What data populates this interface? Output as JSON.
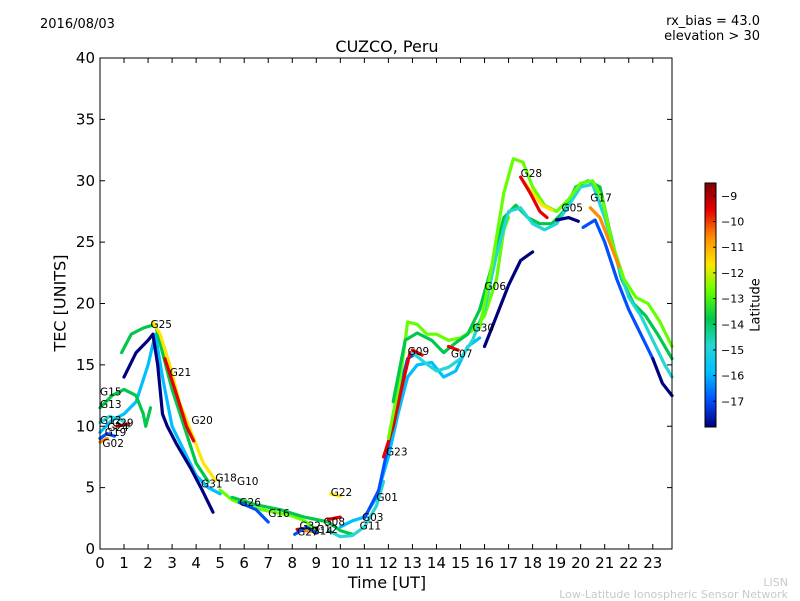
{
  "header": {
    "date": "2016/08/03",
    "rx_bias": "rx_bias = 43.0",
    "elevation": "elevation > 30"
  },
  "footer": {
    "brand_short": "LISN",
    "brand_long": "Low-Latitude Ionospheric Sensor Network"
  },
  "chart_data": {
    "type": "line",
    "title": "CUZCO, Peru",
    "xlabel": "Time [UT]",
    "ylabel": "TEC [UNITS]",
    "xlim": [
      0,
      23.8
    ],
    "ylim": [
      0,
      40
    ],
    "xticks": [
      0,
      1,
      2,
      3,
      4,
      5,
      6,
      7,
      8,
      9,
      10,
      11,
      12,
      13,
      14,
      15,
      16,
      17,
      18,
      19,
      20,
      21,
      22,
      23
    ],
    "yticks": [
      0,
      5,
      10,
      15,
      20,
      25,
      30,
      35,
      40
    ],
    "grid": false,
    "colorbar": {
      "label": "Latitude",
      "range": [
        -18,
        -8.5
      ],
      "ticks": [
        -9,
        -10,
        -11,
        -12,
        -13,
        -14,
        -15,
        -16,
        -17
      ],
      "colors": [
        "#00007f",
        "#0050ff",
        "#00bfff",
        "#24d7d4",
        "#00c84a",
        "#64ff00",
        "#ffe600",
        "#ff8c00",
        "#e60000",
        "#7f0000"
      ]
    },
    "satellite_labels": [
      {
        "name": "G25",
        "x": 2.1,
        "y": 18.0
      },
      {
        "name": "G21",
        "x": 2.9,
        "y": 14.1
      },
      {
        "name": "G20",
        "x": 3.8,
        "y": 10.2
      },
      {
        "name": "G15",
        "x": 0.0,
        "y": 12.5
      },
      {
        "name": "G13",
        "x": 0.0,
        "y": 11.5
      },
      {
        "name": "G12",
        "x": 0.0,
        "y": 10.2
      },
      {
        "name": "G29",
        "x": 0.5,
        "y": 10.0
      },
      {
        "name": "G24",
        "x": 0.3,
        "y": 9.6
      },
      {
        "name": "G19",
        "x": 0.2,
        "y": 9.2
      },
      {
        "name": "G02",
        "x": 0.1,
        "y": 8.3
      },
      {
        "name": "G18",
        "x": 4.8,
        "y": 5.5
      },
      {
        "name": "G31",
        "x": 4.2,
        "y": 5.0
      },
      {
        "name": "G10",
        "x": 5.7,
        "y": 5.2
      },
      {
        "name": "G26",
        "x": 5.8,
        "y": 3.5
      },
      {
        "name": "G16",
        "x": 7.0,
        "y": 2.6
      },
      {
        "name": "G32",
        "x": 8.3,
        "y": 1.6
      },
      {
        "name": "G27",
        "x": 8.2,
        "y": 1.1
      },
      {
        "name": "G14",
        "x": 8.8,
        "y": 1.2
      },
      {
        "name": "G12",
        "x": 9.0,
        "y": 1.3
      },
      {
        "name": "G08",
        "x": 9.3,
        "y": 1.9
      },
      {
        "name": "G11",
        "x": 10.8,
        "y": 1.6
      },
      {
        "name": "G03",
        "x": 10.9,
        "y": 2.3
      },
      {
        "name": "G22",
        "x": 9.6,
        "y": 4.3
      },
      {
        "name": "G01",
        "x": 11.5,
        "y": 3.9
      },
      {
        "name": "G23",
        "x": 11.9,
        "y": 7.6
      },
      {
        "name": "G09",
        "x": 12.8,
        "y": 15.8
      },
      {
        "name": "G07",
        "x": 14.6,
        "y": 15.6
      },
      {
        "name": "G30",
        "x": 15.5,
        "y": 17.7
      },
      {
        "name": "G06",
        "x": 16.0,
        "y": 21.1
      },
      {
        "name": "G28",
        "x": 17.5,
        "y": 30.3
      },
      {
        "name": "G05",
        "x": 19.2,
        "y": 27.5
      },
      {
        "name": "G17",
        "x": 20.4,
        "y": 28.3
      }
    ],
    "series": [
      {
        "color": "#00bfff",
        "points": [
          [
            0,
            9.5
          ],
          [
            0.5,
            10.5
          ],
          [
            1,
            11
          ],
          [
            1.5,
            12
          ],
          [
            2,
            15
          ],
          [
            2.3,
            17.5
          ],
          [
            2.6,
            14
          ],
          [
            3,
            10
          ],
          [
            3.5,
            8
          ],
          [
            4,
            6
          ],
          [
            4.5,
            5
          ],
          [
            5,
            4.5
          ]
        ]
      },
      {
        "color": "#00007f",
        "points": [
          [
            1,
            14
          ],
          [
            1.5,
            16
          ],
          [
            2,
            17
          ],
          [
            2.2,
            17.5
          ],
          [
            2.4,
            15
          ],
          [
            2.5,
            13
          ],
          [
            2.6,
            11
          ],
          [
            2.8,
            10
          ],
          [
            3.2,
            8.5
          ],
          [
            3.8,
            6.5
          ],
          [
            4.2,
            5
          ],
          [
            4.7,
            3
          ]
        ]
      },
      {
        "color": "#00c84a",
        "points": [
          [
            0.9,
            16
          ],
          [
            1.3,
            17.5
          ],
          [
            1.8,
            18
          ],
          [
            2.3,
            18.3
          ],
          [
            2.6,
            16
          ],
          [
            3,
            13
          ],
          [
            3.5,
            10
          ],
          [
            4,
            7
          ],
          [
            4.5,
            5.5
          ]
        ]
      },
      {
        "color": "#ffe600",
        "points": [
          [
            2.2,
            18.5
          ],
          [
            2.5,
            17.5
          ],
          [
            2.9,
            15
          ],
          [
            3.3,
            12
          ],
          [
            3.8,
            9.5
          ],
          [
            4.3,
            7
          ],
          [
            4.8,
            5.6
          ]
        ]
      },
      {
        "color": "#e60000",
        "points": [
          [
            2.7,
            15.5
          ],
          [
            3.2,
            12.5
          ],
          [
            3.6,
            10
          ],
          [
            3.9,
            8.8
          ]
        ]
      },
      {
        "color": "#00c84a",
        "points": [
          [
            0,
            11.5
          ],
          [
            0.5,
            12.5
          ],
          [
            1,
            13
          ],
          [
            1.5,
            12.5
          ],
          [
            1.8,
            11
          ],
          [
            1.9,
            10
          ],
          [
            2.1,
            11.5
          ]
        ]
      },
      {
        "color": "#24d7d4",
        "points": [
          [
            0,
            10.3
          ],
          [
            0.4,
            10.8
          ],
          [
            0.9,
            10.5
          ],
          [
            1.2,
            10
          ]
        ]
      },
      {
        "color": "#0050ff",
        "points": [
          [
            0,
            9
          ],
          [
            0.3,
            9.4
          ],
          [
            0.6,
            9.2
          ]
        ]
      },
      {
        "color": "#64ff00",
        "points": [
          [
            5,
            4.8
          ],
          [
            5.5,
            4
          ],
          [
            6,
            3.6
          ],
          [
            6.5,
            3.3
          ],
          [
            7,
            3.1
          ],
          [
            7.5,
            2.9
          ],
          [
            8,
            2.7
          ],
          [
            8.5,
            2.3
          ],
          [
            9,
            1.6
          ]
        ]
      },
      {
        "color": "#00c84a",
        "points": [
          [
            5.5,
            4.2
          ],
          [
            6.5,
            3.6
          ],
          [
            7.5,
            3.2
          ],
          [
            8.5,
            2.6
          ],
          [
            9.5,
            2.2
          ],
          [
            10,
            1.5
          ],
          [
            10.5,
            1.2
          ]
        ]
      },
      {
        "color": "#24d7d4",
        "points": [
          [
            9.5,
            1.5
          ],
          [
            10,
            1.0
          ],
          [
            10.5,
            1.1
          ],
          [
            11,
            1.8
          ],
          [
            11.5,
            3.5
          ],
          [
            11.8,
            5.5
          ]
        ]
      },
      {
        "color": "#00bfff",
        "points": [
          [
            10,
            1.8
          ],
          [
            10.5,
            2.3
          ],
          [
            11,
            2.6
          ],
          [
            11.5,
            4.2
          ],
          [
            12,
            7.5
          ],
          [
            12.4,
            11
          ],
          [
            12.8,
            14
          ],
          [
            13.2,
            15
          ],
          [
            13.8,
            15.2
          ],
          [
            14.3,
            14
          ],
          [
            14.8,
            14.5
          ],
          [
            15.3,
            16.5
          ],
          [
            15.8,
            17.2
          ]
        ]
      },
      {
        "color": "#0050ff",
        "points": [
          [
            11,
            2.5
          ],
          [
            11.6,
            4.8
          ],
          [
            12,
            8.5
          ],
          [
            12.4,
            12.5
          ],
          [
            12.8,
            15.5
          ],
          [
            13.2,
            16
          ]
        ]
      },
      {
        "color": "#e60000",
        "points": [
          [
            11.8,
            7.5
          ],
          [
            12.2,
            10
          ],
          [
            12.6,
            13.5
          ],
          [
            12.9,
            16
          ]
        ]
      },
      {
        "color": "#64ff00",
        "points": [
          [
            12,
            9
          ],
          [
            12.5,
            14
          ],
          [
            12.8,
            18.5
          ],
          [
            13.2,
            18.3
          ],
          [
            13.6,
            17.5
          ],
          [
            14,
            17.5
          ],
          [
            14.5,
            17
          ],
          [
            15,
            17.2
          ],
          [
            15.5,
            17.8
          ],
          [
            16,
            19
          ],
          [
            16.5,
            22
          ],
          [
            16.8,
            26
          ],
          [
            17,
            27
          ]
        ]
      },
      {
        "color": "#00c84a",
        "points": [
          [
            12.2,
            12
          ],
          [
            12.7,
            17
          ],
          [
            13.2,
            17.6
          ],
          [
            13.8,
            17
          ],
          [
            14.3,
            16
          ],
          [
            14.8,
            16.8
          ],
          [
            15.3,
            17.5
          ],
          [
            15.8,
            19.5
          ],
          [
            16.3,
            23
          ],
          [
            16.8,
            27
          ],
          [
            17.3,
            28
          ],
          [
            17.8,
            27
          ],
          [
            18.3,
            26.5
          ],
          [
            18.8,
            26.5
          ],
          [
            19.3,
            27.5
          ],
          [
            19.8,
            29.5
          ],
          [
            20.3,
            30
          ],
          [
            20.8,
            29.5
          ],
          [
            21.2,
            26
          ],
          [
            21.7,
            22
          ],
          [
            22.2,
            20
          ],
          [
            22.7,
            19
          ],
          [
            23.2,
            17.5
          ],
          [
            23.8,
            15.5
          ]
        ]
      },
      {
        "color": "#24d7d4",
        "points": [
          [
            13,
            16
          ],
          [
            13.5,
            15.2
          ],
          [
            14,
            14.5
          ],
          [
            14.5,
            14.8
          ],
          [
            15,
            15.5
          ],
          [
            15.5,
            17
          ],
          [
            16,
            19.5
          ],
          [
            16.5,
            24
          ],
          [
            17,
            27.5
          ],
          [
            17.5,
            27.8
          ],
          [
            18,
            26.5
          ],
          [
            18.5,
            26
          ],
          [
            19,
            26.5
          ],
          [
            19.5,
            28
          ],
          [
            20,
            29.5
          ],
          [
            20.5,
            29.7
          ],
          [
            21,
            27
          ],
          [
            21.5,
            23.5
          ],
          [
            22,
            20.5
          ],
          [
            22.5,
            19
          ],
          [
            23,
            17
          ],
          [
            23.5,
            15
          ],
          [
            23.8,
            14
          ]
        ]
      },
      {
        "color": "#00007f",
        "points": [
          [
            16,
            16.5
          ],
          [
            16.5,
            19
          ],
          [
            17,
            21.5
          ],
          [
            17.5,
            23.5
          ],
          [
            18,
            24.2
          ]
        ]
      },
      {
        "color": "#64ff00",
        "points": [
          [
            15.8,
            18
          ],
          [
            16.3,
            23
          ],
          [
            16.8,
            29
          ],
          [
            17.2,
            31.8
          ],
          [
            17.6,
            31.5
          ],
          [
            18,
            29.5
          ],
          [
            18.5,
            28
          ],
          [
            19,
            27.5
          ],
          [
            19.5,
            28.5
          ],
          [
            20,
            29.8
          ],
          [
            20.5,
            30
          ],
          [
            20.9,
            28.5
          ],
          [
            21.3,
            25
          ],
          [
            21.8,
            22
          ],
          [
            22.3,
            20.5
          ],
          [
            22.8,
            20
          ],
          [
            23.3,
            18.5
          ],
          [
            23.8,
            16.5
          ]
        ]
      },
      {
        "color": "#ffe600",
        "points": [
          [
            17.6,
            30
          ],
          [
            18,
            29
          ],
          [
            18.4,
            28
          ],
          [
            18.8,
            27.6
          ]
        ]
      },
      {
        "color": "#e60000",
        "points": [
          [
            17.5,
            30.3
          ],
          [
            17.9,
            29
          ],
          [
            18.3,
            27.5
          ],
          [
            18.6,
            27
          ]
        ]
      },
      {
        "color": "#ff8c00",
        "points": [
          [
            20.4,
            27.8
          ],
          [
            20.8,
            27
          ],
          [
            21.2,
            25
          ],
          [
            21.6,
            23
          ]
        ]
      },
      {
        "color": "#0050ff",
        "points": [
          [
            20.1,
            26.2
          ],
          [
            20.6,
            26.8
          ],
          [
            21,
            25
          ],
          [
            21.5,
            22
          ],
          [
            22,
            19.5
          ],
          [
            22.5,
            17.5
          ],
          [
            23,
            15.5
          ]
        ]
      },
      {
        "color": "#00007f",
        "points": [
          [
            19,
            26.8
          ],
          [
            19.5,
            27
          ],
          [
            19.9,
            26.7
          ]
        ]
      },
      {
        "color": "#00007f",
        "points": [
          [
            23,
            15.5
          ],
          [
            23.4,
            13.5
          ],
          [
            23.8,
            12.5
          ]
        ]
      },
      {
        "color": "#ffe600",
        "points": [
          [
            9.6,
            4.5
          ],
          [
            10,
            4.3
          ]
        ]
      },
      {
        "color": "#e60000",
        "points": [
          [
            8.2,
            1.6
          ],
          [
            8.6,
            1.7
          ]
        ]
      },
      {
        "color": "#ff8c00",
        "points": [
          [
            8.5,
            1.5
          ],
          [
            9,
            1.4
          ]
        ]
      },
      {
        "color": "#0050ff",
        "points": [
          [
            8.1,
            1.2
          ],
          [
            8.6,
            1.8
          ],
          [
            9,
            1.3
          ]
        ]
      },
      {
        "color": "#e60000",
        "points": [
          [
            9.5,
            2.4
          ],
          [
            10,
            2.6
          ]
        ]
      },
      {
        "color": "#e60000",
        "points": [
          [
            14.5,
            16.5
          ],
          [
            14.9,
            16.2
          ]
        ]
      },
      {
        "color": "#e60000",
        "points": [
          [
            13,
            16.2
          ],
          [
            13.4,
            15.8
          ]
        ]
      },
      {
        "color": "#0050ff",
        "points": [
          [
            5.8,
            3.8
          ],
          [
            6.5,
            3.2
          ],
          [
            7,
            2.2
          ]
        ]
      },
      {
        "color": "#e60000",
        "points": [
          [
            0.7,
            10
          ],
          [
            1.2,
            10.2
          ]
        ]
      },
      {
        "color": "#ff8c00",
        "points": [
          [
            0,
            8.7
          ],
          [
            0.3,
            9.0
          ]
        ]
      }
    ]
  }
}
